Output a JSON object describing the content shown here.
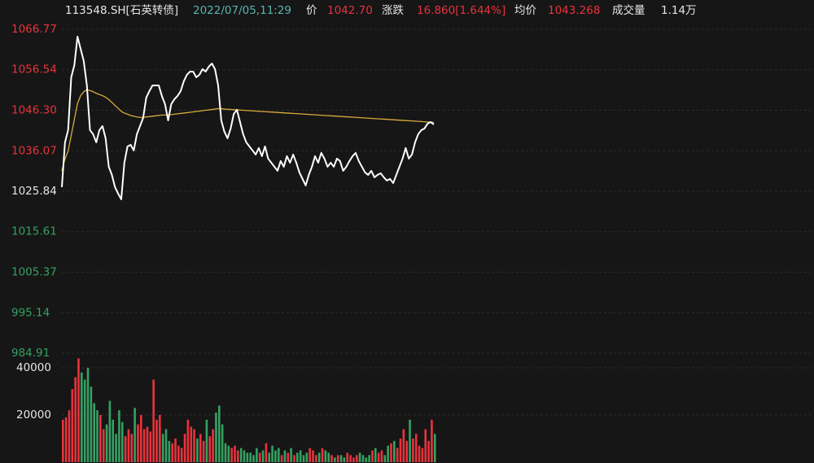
{
  "header": {
    "code": "113548.SH[石英转债]",
    "time": "2022/07/05,11:29",
    "price_label": "价",
    "price": "1042.70",
    "change_label": "涨跌",
    "change": "16.860[1.644%]",
    "avg_label": "均价",
    "avg": "1043.268",
    "volume_label": "成交量",
    "volume": "1.14万"
  },
  "chart_data": {
    "type": "line",
    "ylim": [
      984.91,
      1066.77
    ],
    "yticks": [
      1066.77,
      1056.54,
      {
        "value": 1046.3,
        "label": "1046.30"
      },
      1036.07,
      1025.84,
      1015.61,
      1005.37,
      995.14,
      984.91
    ],
    "ytick_colors": [
      "#e8333d",
      "#e8333d",
      "#e8333d",
      "#e8333d",
      "#e6e6e6",
      "#35a162",
      "#35a162",
      "#35a162",
      "#35a162"
    ],
    "grid": true,
    "up_color": "#e8333d",
    "down_color": "#35a162",
    "series": [
      {
        "color": "#ffffff",
        "values": [
          1026.88,
          1038.19,
          1041.28,
          1054.64,
          1057.72,
          1064.92,
          1061.84,
          1058.75,
          1052.58,
          1041.28,
          1040.25,
          1038.19,
          1041.28,
          1042.3,
          1039.22,
          1032.02,
          1029.97,
          1026.88,
          1025.24,
          1023.8,
          1033.05,
          1037.16,
          1037.57,
          1036.14,
          1040.25,
          1042.3,
          1044.36,
          1049.5,
          1051.14,
          1052.58,
          1052.58,
          1052.58,
          1049.91,
          1047.85,
          1043.74,
          1047.85,
          1049.09,
          1049.91,
          1051.14,
          1053.61,
          1055.26,
          1056.08,
          1056.08,
          1054.64,
          1055.26,
          1056.7,
          1056.08,
          1057.31,
          1058.13,
          1056.7,
          1052.58,
          1043.74,
          1040.86,
          1039.22,
          1041.69,
          1045.39,
          1046.42,
          1043.33,
          1040.25,
          1038.19,
          1037.16,
          1036.14,
          1035.11,
          1036.75,
          1034.7,
          1037.16,
          1034.08,
          1033.05,
          1032.02,
          1031.0,
          1033.46,
          1032.02,
          1034.7,
          1033.05,
          1035.11,
          1033.05,
          1030.58,
          1028.94,
          1027.29,
          1029.97,
          1032.02,
          1034.7,
          1033.05,
          1035.52,
          1034.08,
          1032.02,
          1033.05,
          1032.02,
          1034.08,
          1033.46,
          1031.0,
          1032.02,
          1033.46,
          1034.7,
          1035.52,
          1033.46,
          1032.02,
          1030.58,
          1029.97,
          1031.0,
          1029.35,
          1029.97,
          1030.38,
          1029.35,
          1028.53,
          1028.94,
          1027.91,
          1029.97,
          1032.02,
          1034.08,
          1036.75,
          1034.08,
          1035.11,
          1038.19,
          1040.25,
          1041.28,
          1041.69,
          1042.92,
          1043.33,
          1042.7
        ]
      },
      {
        "color": "#d9aa3c",
        "values": [
          1031.0,
          1034.0,
          1036.0,
          1040.0,
          1044.0,
          1048.0,
          1050.0,
          1051.0,
          1051.5,
          1051.3,
          1051.0,
          1050.6,
          1050.3,
          1050.0,
          1049.6,
          1049.0,
          1048.3,
          1047.5,
          1046.8,
          1046.0,
          1045.6,
          1045.3,
          1045.0,
          1044.8,
          1044.6,
          1044.5,
          1044.5,
          1044.6,
          1044.7,
          1044.8,
          1044.9,
          1045.0,
          1045.1,
          1045.1,
          1045.2,
          1045.2,
          1045.3,
          1045.4,
          1045.5,
          1045.6,
          1045.7,
          1045.8,
          1045.9,
          1046.0,
          1046.1,
          1046.2,
          1046.3,
          1046.4,
          1046.5,
          1046.6,
          1046.7,
          1046.7,
          1046.6,
          1046.55,
          1046.5,
          1046.45,
          1046.4,
          1046.35,
          1046.3,
          1046.25,
          1046.2,
          1046.15,
          1046.1,
          1046.05,
          1046.0,
          1045.95,
          1045.9,
          1045.85,
          1045.8,
          1045.75,
          1045.7,
          1045.65,
          1045.6,
          1045.55,
          1045.5,
          1045.45,
          1045.4,
          1045.35,
          1045.3,
          1045.25,
          1045.2,
          1045.15,
          1045.1,
          1045.05,
          1045.0,
          1044.95,
          1044.9,
          1044.85,
          1044.8,
          1044.75,
          1044.7,
          1044.65,
          1044.6,
          1044.55,
          1044.5,
          1044.45,
          1044.4,
          1044.35,
          1044.3,
          1044.25,
          1044.2,
          1044.15,
          1044.1,
          1044.05,
          1044.0,
          1043.95,
          1043.9,
          1043.85,
          1043.8,
          1043.75,
          1043.7,
          1043.65,
          1043.6,
          1043.55,
          1043.5,
          1043.45,
          1043.4,
          1043.35,
          1043.3,
          1043.27
        ]
      }
    ],
    "volume": {
      "values": [
        18000,
        19000,
        22000,
        31000,
        36000,
        44000,
        38000,
        35000,
        40000,
        32000,
        25000,
        22000,
        20000,
        14000,
        16000,
        26000,
        18000,
        12000,
        22000,
        17000,
        11000,
        14000,
        12000,
        23000,
        16000,
        20000,
        14000,
        15000,
        13000,
        35000,
        18000,
        20000,
        12000,
        14000,
        9000,
        8000,
        10000,
        7000,
        6000,
        12000,
        18000,
        15000,
        14000,
        10000,
        12000,
        9000,
        18000,
        11000,
        14000,
        21000,
        24000,
        16000,
        8000,
        7000,
        6000,
        7000,
        5000,
        6000,
        5000,
        4000,
        4000,
        3000,
        6000,
        4000,
        5000,
        8000,
        4000,
        7000,
        5000,
        6000,
        3000,
        5000,
        4000,
        6000,
        3000,
        4000,
        5000,
        3000,
        4000,
        6000,
        5000,
        3000,
        4000,
        6000,
        5000,
        4000,
        3000,
        2000,
        3000,
        3000,
        2000,
        4000,
        3000,
        2000,
        3000,
        4000,
        3000,
        2000,
        3000,
        5000,
        6000,
        4000,
        5000,
        3000,
        7000,
        8000,
        9000,
        6000,
        10000,
        14000,
        9000,
        18000,
        10000,
        12000,
        7000,
        6000,
        14000,
        9000,
        18000,
        12000
      ]
    },
    "y2lim": [
      0,
      40000
    ],
    "y2ticks": [
      40000,
      20000
    ]
  }
}
